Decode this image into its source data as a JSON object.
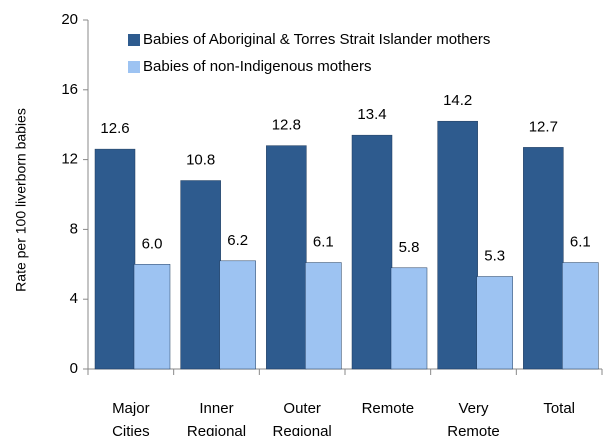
{
  "chart_data": {
    "type": "bar",
    "y_label": "Rate per 100 liverborn babies",
    "categories": [
      "Major Cities",
      "Inner Regional",
      "Outer Regional",
      "Remote",
      "Very Remote",
      "Total"
    ],
    "series": [
      {
        "name": "Babies of Aboriginal & Torres Strait Islander mothers",
        "color": "#2e5b8e",
        "values": [
          12.6,
          10.8,
          12.8,
          13.4,
          14.2,
          12.7
        ],
        "value_labels": [
          "12.6",
          "10.8",
          "12.8",
          "13.4",
          "14.2",
          "12.7"
        ]
      },
      {
        "name": "Babies of non-Indigenous mothers",
        "color": "#9dc3f2",
        "values": [
          6.0,
          6.2,
          6.1,
          5.8,
          5.3,
          6.1
        ],
        "value_labels": [
          "6.0",
          "6.2",
          "6.1",
          "5.8",
          "5.3",
          "6.1"
        ]
      }
    ],
    "ylim": [
      0,
      20
    ],
    "yticks": [
      0,
      4,
      8,
      12,
      16,
      20
    ],
    "grid": false,
    "legend": "top"
  }
}
